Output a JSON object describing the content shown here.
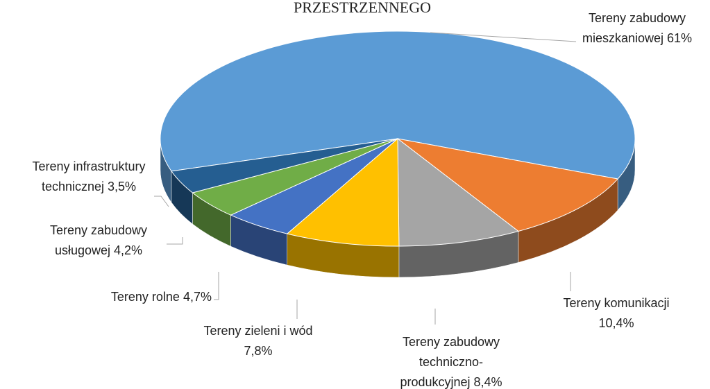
{
  "chart_data": {
    "type": "pie3d",
    "title": "PRZESTRZENNEGO",
    "categories": [
      "Tereny zabudowy mieszkaniowej",
      "Tereny komunikacji",
      "Tereny zabudowy techniczno-produkcyjnej",
      "Tereny zieleni i wód",
      "Tereny rolne",
      "Tereny zabudowy usługowej",
      "Tereny infrastruktury technicznej"
    ],
    "values": [
      61,
      10.4,
      8.4,
      7.8,
      4.7,
      4.2,
      3.5
    ],
    "value_labels": [
      "61%",
      "10,4%",
      "8,4%",
      "7,8%",
      "4,7%",
      "4,2%",
      "3,5%"
    ],
    "colors": [
      "#5b9bd5",
      "#ed7d31",
      "#a5a5a5",
      "#ffc000",
      "#4472c4",
      "#70ad47",
      "#255e91"
    ]
  }
}
